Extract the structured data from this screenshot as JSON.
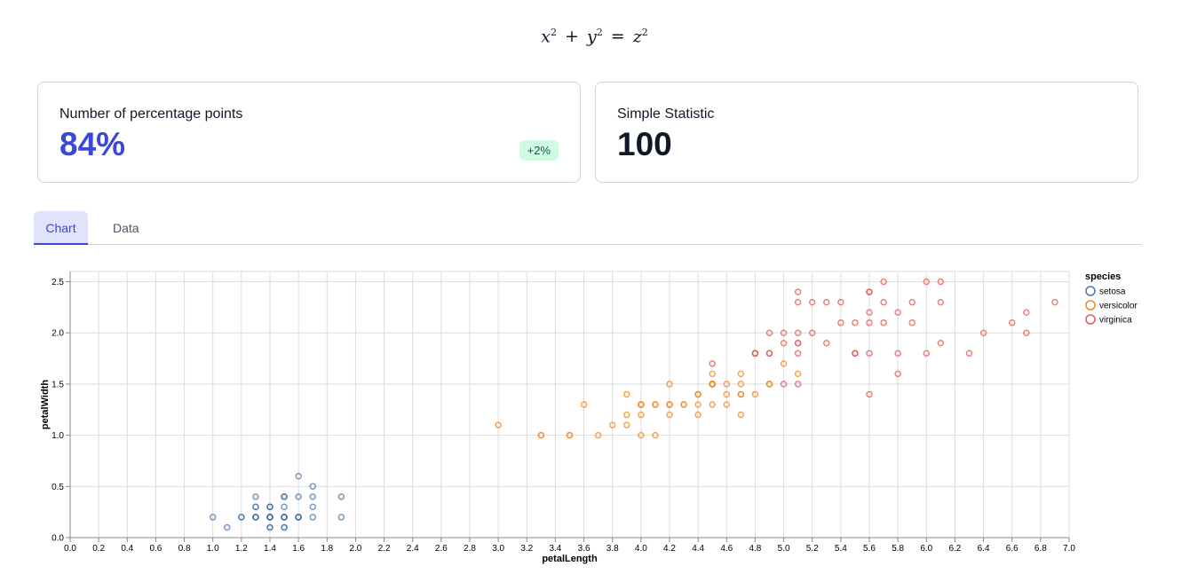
{
  "formula": {
    "a": "x",
    "b": "y",
    "c": "z",
    "exp": "2",
    "plus": "+",
    "eq": "="
  },
  "cards": [
    {
      "title": "Number of percentage points",
      "value": "84%",
      "delta": "+2%",
      "delta_color": "#065f46"
    },
    {
      "title": "Simple Statistic",
      "value": "100"
    }
  ],
  "tabs": [
    {
      "label": "Chart",
      "active": true
    },
    {
      "label": "Data",
      "active": false
    }
  ],
  "colors": {
    "accent": "#3b47d6",
    "setosa": "#4c78a8",
    "versicolor": "#f58518",
    "virginica": "#e45756"
  },
  "chart_data": {
    "type": "scatter",
    "xlabel": "petalLength",
    "ylabel": "petalWidth",
    "xlim": [
      0,
      7
    ],
    "ylim": [
      0,
      2.6
    ],
    "xticks": [
      "0.0",
      "0.2",
      "0.4",
      "0.6",
      "0.8",
      "1.0",
      "1.2",
      "1.4",
      "1.6",
      "1.8",
      "2.0",
      "2.2",
      "2.4",
      "2.6",
      "2.8",
      "3.0",
      "3.2",
      "3.4",
      "3.6",
      "3.8",
      "4.0",
      "4.2",
      "4.4",
      "4.6",
      "4.8",
      "5.0",
      "5.2",
      "5.4",
      "5.6",
      "5.8",
      "6.0",
      "6.2",
      "6.4",
      "6.6",
      "6.8",
      "7.0"
    ],
    "yticks": [
      "0.0",
      "0.5",
      "1.0",
      "1.5",
      "2.0",
      "2.5"
    ],
    "grid": true,
    "legend_title": "species",
    "legend_position": "top-right",
    "series": [
      {
        "name": "setosa",
        "color": "#4c78a8",
        "points": [
          [
            1.4,
            0.2
          ],
          [
            1.4,
            0.2
          ],
          [
            1.3,
            0.2
          ],
          [
            1.5,
            0.2
          ],
          [
            1.4,
            0.2
          ],
          [
            1.7,
            0.4
          ],
          [
            1.4,
            0.3
          ],
          [
            1.5,
            0.2
          ],
          [
            1.4,
            0.2
          ],
          [
            1.5,
            0.1
          ],
          [
            1.5,
            0.2
          ],
          [
            1.6,
            0.2
          ],
          [
            1.4,
            0.1
          ],
          [
            1.1,
            0.1
          ],
          [
            1.2,
            0.2
          ],
          [
            1.5,
            0.4
          ],
          [
            1.3,
            0.4
          ],
          [
            1.4,
            0.3
          ],
          [
            1.7,
            0.3
          ],
          [
            1.5,
            0.3
          ],
          [
            1.7,
            0.2
          ],
          [
            1.5,
            0.4
          ],
          [
            1.0,
            0.2
          ],
          [
            1.7,
            0.5
          ],
          [
            1.9,
            0.2
          ],
          [
            1.6,
            0.2
          ],
          [
            1.6,
            0.4
          ],
          [
            1.5,
            0.2
          ],
          [
            1.4,
            0.2
          ],
          [
            1.6,
            0.2
          ],
          [
            1.6,
            0.2
          ],
          [
            1.5,
            0.4
          ],
          [
            1.5,
            0.1
          ],
          [
            1.4,
            0.2
          ],
          [
            1.5,
            0.2
          ],
          [
            1.2,
            0.2
          ],
          [
            1.3,
            0.2
          ],
          [
            1.4,
            0.1
          ],
          [
            1.3,
            0.2
          ],
          [
            1.5,
            0.2
          ],
          [
            1.3,
            0.3
          ],
          [
            1.3,
            0.3
          ],
          [
            1.3,
            0.2
          ],
          [
            1.6,
            0.6
          ],
          [
            1.9,
            0.4
          ],
          [
            1.4,
            0.3
          ],
          [
            1.6,
            0.2
          ],
          [
            1.4,
            0.2
          ],
          [
            1.5,
            0.2
          ],
          [
            1.4,
            0.2
          ]
        ]
      },
      {
        "name": "versicolor",
        "color": "#f58518",
        "points": [
          [
            4.7,
            1.4
          ],
          [
            4.5,
            1.5
          ],
          [
            4.9,
            1.5
          ],
          [
            4.0,
            1.3
          ],
          [
            4.6,
            1.5
          ],
          [
            4.5,
            1.3
          ],
          [
            4.7,
            1.6
          ],
          [
            3.3,
            1.0
          ],
          [
            4.6,
            1.3
          ],
          [
            3.9,
            1.4
          ],
          [
            3.5,
            1.0
          ],
          [
            4.2,
            1.5
          ],
          [
            4.0,
            1.0
          ],
          [
            4.7,
            1.4
          ],
          [
            3.6,
            1.3
          ],
          [
            4.4,
            1.4
          ],
          [
            4.5,
            1.5
          ],
          [
            4.1,
            1.0
          ],
          [
            4.5,
            1.5
          ],
          [
            3.9,
            1.1
          ],
          [
            4.8,
            1.8
          ],
          [
            4.0,
            1.3
          ],
          [
            4.9,
            1.5
          ],
          [
            4.7,
            1.2
          ],
          [
            4.3,
            1.3
          ],
          [
            4.4,
            1.4
          ],
          [
            4.8,
            1.4
          ],
          [
            5.0,
            1.7
          ],
          [
            4.5,
            1.5
          ],
          [
            3.5,
            1.0
          ],
          [
            3.8,
            1.1
          ],
          [
            3.7,
            1.0
          ],
          [
            3.9,
            1.2
          ],
          [
            5.1,
            1.6
          ],
          [
            4.5,
            1.5
          ],
          [
            4.5,
            1.6
          ],
          [
            4.7,
            1.5
          ],
          [
            4.4,
            1.3
          ],
          [
            4.1,
            1.3
          ],
          [
            4.0,
            1.3
          ],
          [
            4.4,
            1.2
          ],
          [
            4.6,
            1.4
          ],
          [
            4.0,
            1.2
          ],
          [
            3.3,
            1.0
          ],
          [
            4.2,
            1.3
          ],
          [
            4.2,
            1.2
          ],
          [
            4.2,
            1.3
          ],
          [
            4.3,
            1.3
          ],
          [
            3.0,
            1.1
          ],
          [
            4.1,
            1.3
          ]
        ]
      },
      {
        "name": "virginica",
        "color": "#e45756",
        "points": [
          [
            6.0,
            2.5
          ],
          [
            5.1,
            1.9
          ],
          [
            5.9,
            2.1
          ],
          [
            5.6,
            1.8
          ],
          [
            5.8,
            2.2
          ],
          [
            6.6,
            2.1
          ],
          [
            4.5,
            1.7
          ],
          [
            6.3,
            1.8
          ],
          [
            5.8,
            1.8
          ],
          [
            6.1,
            2.5
          ],
          [
            5.1,
            2.0
          ],
          [
            5.3,
            1.9
          ],
          [
            5.5,
            2.1
          ],
          [
            5.0,
            2.0
          ],
          [
            5.1,
            2.4
          ],
          [
            5.3,
            2.3
          ],
          [
            5.5,
            1.8
          ],
          [
            6.7,
            2.2
          ],
          [
            6.9,
            2.3
          ],
          [
            5.0,
            1.5
          ],
          [
            5.7,
            2.3
          ],
          [
            4.9,
            2.0
          ],
          [
            6.7,
            2.0
          ],
          [
            4.9,
            1.8
          ],
          [
            5.7,
            2.1
          ],
          [
            6.0,
            1.8
          ],
          [
            4.8,
            1.8
          ],
          [
            4.9,
            1.8
          ],
          [
            5.6,
            2.1
          ],
          [
            5.8,
            1.6
          ],
          [
            6.1,
            1.9
          ],
          [
            6.4,
            2.0
          ],
          [
            5.6,
            2.2
          ],
          [
            5.1,
            1.5
          ],
          [
            5.6,
            1.4
          ],
          [
            6.1,
            2.3
          ],
          [
            5.6,
            2.4
          ],
          [
            5.5,
            1.8
          ],
          [
            4.8,
            1.8
          ],
          [
            5.4,
            2.1
          ],
          [
            5.6,
            2.4
          ],
          [
            5.1,
            2.3
          ],
          [
            5.1,
            1.9
          ],
          [
            5.9,
            2.3
          ],
          [
            5.7,
            2.5
          ],
          [
            5.2,
            2.3
          ],
          [
            5.0,
            1.9
          ],
          [
            5.2,
            2.0
          ],
          [
            5.4,
            2.3
          ],
          [
            5.1,
            1.8
          ]
        ]
      }
    ]
  }
}
